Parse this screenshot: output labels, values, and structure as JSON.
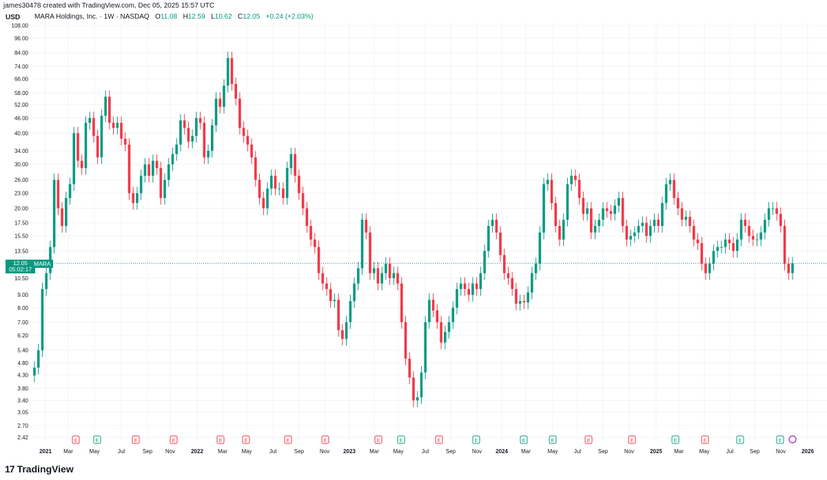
{
  "header": {
    "credit": "james30478 created with TradingView.com, Dec 05, 2025 15:57 UTC",
    "currency": "USD",
    "symbol_desc": "MARA Holdings, Inc. · 1W · NASDAQ",
    "o_label": "O",
    "o_value": "11.08",
    "h_label": "H",
    "h_value": "12.59",
    "l_label": "L",
    "l_value": "10.62",
    "c_label": "C",
    "c_value": "12.05",
    "change": "+0.24 (+2.03%)"
  },
  "price_marker": {
    "price": "12.05",
    "countdown": "05:02:17",
    "ticker": "MARA"
  },
  "brand": {
    "logo": "17",
    "name": "TradingView"
  },
  "colors": {
    "up": "#089981",
    "down": "#f23645",
    "grid": "#f0f3fa",
    "earnings_red": "#f23645",
    "earnings_green": "#089981",
    "dividend": "#9c27b0"
  },
  "chart_data": {
    "type": "candlestick",
    "scale": "log",
    "ylim": [
      2.42,
      108
    ],
    "y_ticks": [
      "108.00",
      "96.00",
      "84.00",
      "74.00",
      "66.00",
      "58.00",
      "52.00",
      "46.00",
      "40.00",
      "34.00",
      "30.00",
      "26.00",
      "23.00",
      "20.00",
      "17.50",
      "15.50",
      "13.50",
      "12.05",
      "10.50",
      "9.00",
      "8.00",
      "7.00",
      "6.20",
      "5.40",
      "4.80",
      "4.30",
      "3.80",
      "3.40",
      "3.05",
      "2.70",
      "2.42"
    ],
    "x_ticks": [
      {
        "label": "2021",
        "bold": true
      },
      {
        "label": "Mar"
      },
      {
        "label": "May"
      },
      {
        "label": "Jul"
      },
      {
        "label": "Sep"
      },
      {
        "label": "Nov"
      },
      {
        "label": "2022",
        "bold": true
      },
      {
        "label": "Mar"
      },
      {
        "label": "May"
      },
      {
        "label": "Jul"
      },
      {
        "label": "Sep"
      },
      {
        "label": "Nov"
      },
      {
        "label": "2023",
        "bold": true
      },
      {
        "label": "Mar"
      },
      {
        "label": "May"
      },
      {
        "label": "Jul"
      },
      {
        "label": "Sep"
      },
      {
        "label": "Nov"
      },
      {
        "label": "2024",
        "bold": true
      },
      {
        "label": "Mar"
      },
      {
        "label": "May"
      },
      {
        "label": "Jul"
      },
      {
        "label": "Sep"
      },
      {
        "label": "Nov"
      },
      {
        "label": "2025",
        "bold": true
      },
      {
        "label": "Mar"
      },
      {
        "label": "May"
      },
      {
        "label": "Jul"
      },
      {
        "label": "Sep"
      },
      {
        "label": "Nov"
      },
      {
        "label": "2026",
        "bold": true
      }
    ],
    "last_price": 12.05,
    "closes": [
      4.6,
      5.4,
      9.5,
      11,
      14,
      26,
      20,
      17,
      22,
      25,
      40,
      31,
      29,
      44,
      46,
      39,
      32,
      47,
      56,
      44,
      42,
      44,
      38,
      36,
      23,
      21,
      23,
      27,
      30,
      27,
      31,
      29,
      22,
      26,
      30,
      33,
      36,
      45,
      42,
      37,
      39,
      46,
      44,
      32,
      34,
      43,
      55,
      51,
      62,
      80,
      63,
      55,
      42,
      39,
      36,
      32,
      26,
      22,
      20,
      24,
      27,
      24,
      24,
      22,
      29,
      33,
      27,
      23,
      20,
      17,
      15,
      14,
      11,
      10,
      9.5,
      8.5,
      8.6,
      6.5,
      6,
      7,
      8.5,
      10,
      11.5,
      18,
      16,
      11,
      11.5,
      10,
      11,
      12,
      10.5,
      11,
      10,
      7,
      5,
      4.2,
      3.4,
      3.5,
      4.4,
      7,
      8.6,
      7.8,
      7,
      5.8,
      6.4,
      7,
      8,
      9.5,
      10,
      9.5,
      9,
      10,
      9.5,
      11,
      13.5,
      17,
      18,
      16,
      13,
      11,
      10.5,
      9.5,
      8.3,
      8.5,
      8.4,
      9.2,
      11,
      12,
      16,
      25,
      26,
      21,
      17,
      15,
      18,
      25,
      27,
      26,
      22,
      19,
      20,
      16,
      17,
      18,
      20,
      19.5,
      19,
      20.5,
      22,
      17,
      15,
      15.5,
      16,
      17,
      17.5,
      15.5,
      17,
      18,
      17,
      21,
      25,
      26,
      22,
      20,
      18,
      18.5,
      17,
      15,
      14.5,
      12,
      11,
      12,
      13.5,
      14,
      14,
      15,
      14.5,
      13.5,
      15,
      18,
      17,
      15.5,
      15,
      15,
      16,
      18,
      20,
      20,
      19,
      17,
      12,
      11,
      12.05
    ]
  }
}
